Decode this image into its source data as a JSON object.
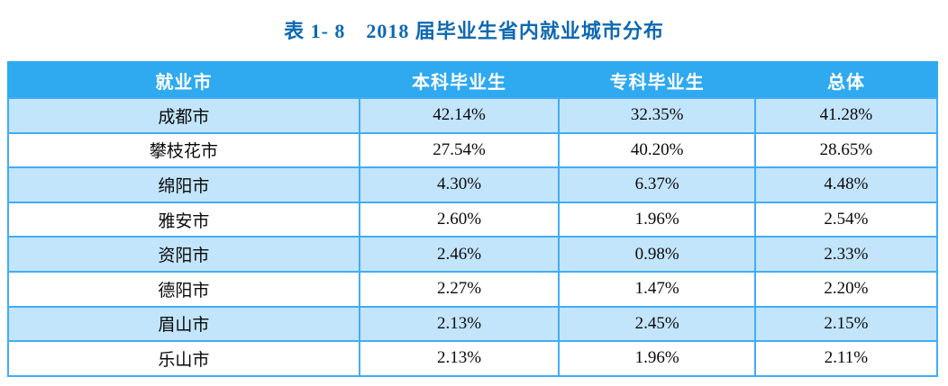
{
  "caption": "表 1- 8　2018 届毕业生省内就业城市分布",
  "colors": {
    "title_text": "#0E68B2",
    "header_bg": "#2FA9F0",
    "header_text": "#FFFFFF",
    "grid_border": "#41ACF8",
    "row_alt_bg": "#C3E5FC",
    "body_text": "#0A0A0A"
  },
  "table": {
    "columns": [
      "就业市",
      "本科毕业生",
      "专科毕业生",
      "总体"
    ],
    "rows": [
      {
        "city": "成都市",
        "undergrad": "42.14%",
        "college": "32.35%",
        "overall": "41.28%"
      },
      {
        "city": "攀枝花市",
        "undergrad": "27.54%",
        "college": "40.20%",
        "overall": "28.65%"
      },
      {
        "city": "绵阳市",
        "undergrad": "4.30%",
        "college": "6.37%",
        "overall": "4.48%"
      },
      {
        "city": "雅安市",
        "undergrad": "2.60%",
        "college": "1.96%",
        "overall": "2.54%"
      },
      {
        "city": "资阳市",
        "undergrad": "2.46%",
        "college": "0.98%",
        "overall": "2.33%"
      },
      {
        "city": "德阳市",
        "undergrad": "2.27%",
        "college": "1.47%",
        "overall": "2.20%"
      },
      {
        "city": "眉山市",
        "undergrad": "2.13%",
        "college": "2.45%",
        "overall": "2.15%"
      },
      {
        "city": "乐山市",
        "undergrad": "2.13%",
        "college": "1.96%",
        "overall": "2.11%"
      }
    ]
  }
}
